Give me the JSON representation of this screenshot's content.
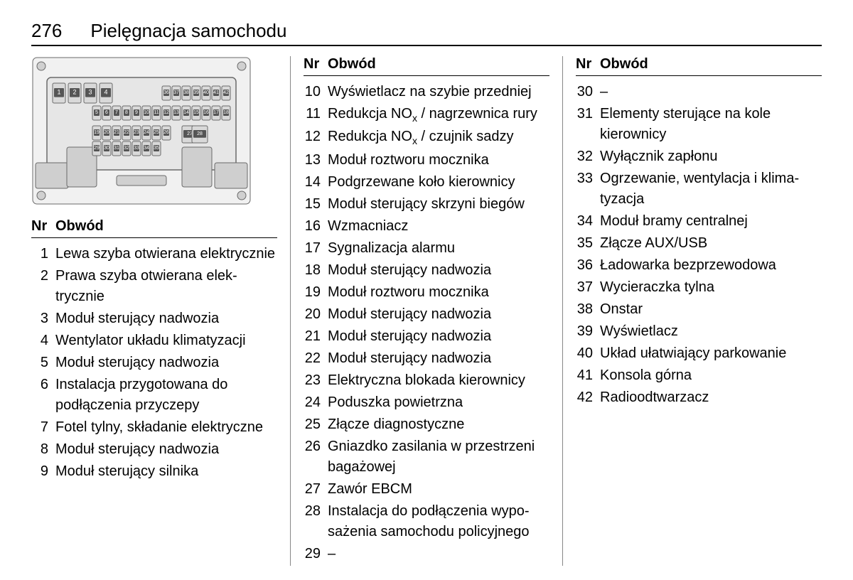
{
  "page_number": "276",
  "page_title": "Pielęgnacja samochodu",
  "table_header": {
    "nr": "Nr",
    "circuit": "Obwód"
  },
  "fusebox": {
    "rows": [
      [
        "1",
        "2",
        "3",
        "4",
        "",
        "",
        "",
        "",
        "",
        "",
        "",
        "36",
        "37",
        "38",
        "39",
        "40",
        "41",
        "42"
      ],
      [
        "",
        "",
        "",
        "",
        "5",
        "6",
        "7",
        "8",
        "9",
        "10",
        "11",
        "12",
        "13",
        "14",
        "15",
        "16",
        "17",
        "18"
      ],
      [
        "",
        "",
        "",
        "",
        "19",
        "20",
        "21",
        "22",
        "23",
        "24",
        "25",
        "26",
        "",
        "27",
        "28",
        "",
        "",
        ""
      ],
      [
        "",
        "",
        "",
        "",
        "29",
        "30",
        "31",
        "32",
        "33",
        "34",
        "35",
        "",
        "",
        "",
        "",
        "",
        "",
        ""
      ]
    ],
    "stroke": "#6a6a6a",
    "fill_panel": "#e6e6e6",
    "fill_fuse": "#d9d9d9",
    "fill_relay": "#cfcfcf",
    "text": "#000"
  },
  "col1": [
    {
      "nr": "1",
      "desc": "Lewa szyba otwierana elek­trycznie"
    },
    {
      "nr": "2",
      "desc": "Prawa szyba otwierana elek­trycznie"
    },
    {
      "nr": "3",
      "desc": "Moduł sterujący nadwozia"
    },
    {
      "nr": "4",
      "desc": "Wentylator układu klimatyzacji"
    },
    {
      "nr": "5",
      "desc": "Moduł sterujący nadwozia"
    },
    {
      "nr": "6",
      "desc": "Instalacja przygotowana do podłączenia przyczepy"
    },
    {
      "nr": "7",
      "desc": "Fotel tylny, składanie elektryczne"
    },
    {
      "nr": "8",
      "desc": "Moduł sterujący nadwozia"
    },
    {
      "nr": "9",
      "desc": "Moduł sterujący silnika"
    }
  ],
  "col2": [
    {
      "nr": "10",
      "desc": "Wyświetlacz na szybie przedniej"
    },
    {
      "nr": "11",
      "desc": "Redukcja NO<sub>x</sub> / nagrzewnica rury"
    },
    {
      "nr": "12",
      "desc": "Redukcja NO<sub>x</sub> / czujnik sadzy"
    },
    {
      "nr": "13",
      "desc": "Moduł roztworu mocznika"
    },
    {
      "nr": "14",
      "desc": "Podgrzewane koło kierownicy"
    },
    {
      "nr": "15",
      "desc": "Moduł sterujący skrzyni biegów"
    },
    {
      "nr": "16",
      "desc": "Wzmacniacz"
    },
    {
      "nr": "17",
      "desc": "Sygnalizacja alarmu"
    },
    {
      "nr": "18",
      "desc": "Moduł sterujący nadwozia"
    },
    {
      "nr": "19",
      "desc": "Moduł roztworu mocznika"
    },
    {
      "nr": "20",
      "desc": "Moduł sterujący nadwozia"
    },
    {
      "nr": "21",
      "desc": "Moduł sterujący nadwozia"
    },
    {
      "nr": "22",
      "desc": "Moduł sterujący nadwozia"
    },
    {
      "nr": "23",
      "desc": "Elektryczna blokada kierownicy"
    },
    {
      "nr": "24",
      "desc": "Poduszka powietrzna"
    },
    {
      "nr": "25",
      "desc": "Złącze diagnostyczne"
    },
    {
      "nr": "26",
      "desc": "Gniazdko zasilania w przestrzeni bagażowej"
    },
    {
      "nr": "27",
      "desc": "Zawór EBCM"
    },
    {
      "nr": "28",
      "desc": "Instalacja do podłączenia wypo­sażenia samochodu policyjnego"
    },
    {
      "nr": "29",
      "desc": "–"
    }
  ],
  "col3": [
    {
      "nr": "30",
      "desc": "–"
    },
    {
      "nr": "31",
      "desc": "Elementy sterujące na kole kierownicy"
    },
    {
      "nr": "32",
      "desc": "Wyłącznik zapłonu"
    },
    {
      "nr": "33",
      "desc": "Ogrzewanie, wentylacja i klima­tyzacja"
    },
    {
      "nr": "34",
      "desc": "Moduł bramy centralnej"
    },
    {
      "nr": "35",
      "desc": "Złącze AUX/USB"
    },
    {
      "nr": "36",
      "desc": "Ładowarka bezprzewodowa"
    },
    {
      "nr": "37",
      "desc": "Wycieraczka tylna"
    },
    {
      "nr": "38",
      "desc": "Onstar"
    },
    {
      "nr": "39",
      "desc": "Wyświetlacz"
    },
    {
      "nr": "40",
      "desc": "Układ ułatwiający parkowanie"
    },
    {
      "nr": "41",
      "desc": "Konsola górna"
    },
    {
      "nr": "42",
      "desc": "Radioodtwarzacz"
    }
  ]
}
